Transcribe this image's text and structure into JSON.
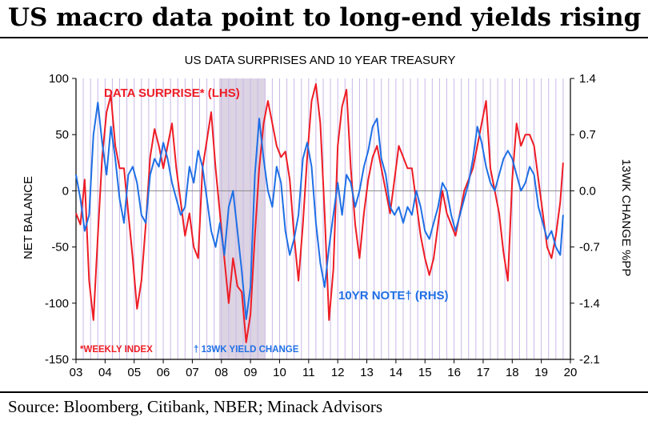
{
  "header": {
    "title": "US macro data point to long-end yields rising"
  },
  "footer": {
    "source": "Source: Bloomberg, Citibank, NBER; Minack Advisors"
  },
  "colors": {
    "data_surprise": "#ee1c25",
    "yield_change": "#1f6fe5",
    "grid": "#c9b8e8",
    "recession_band": "#dcd3e3"
  },
  "chart_data": {
    "type": "line",
    "title": "US DATA SURPRISES AND 10 YEAR TREASURY",
    "ylabel": "NET BALANCE",
    "ylabel_right": "13WK CHANGE %PP",
    "xlim": [
      2003,
      2020
    ],
    "ylim": [
      -150,
      100
    ],
    "ylim_right": [
      -2.1,
      1.4
    ],
    "x_ticks": [
      2003,
      2004,
      2005,
      2006,
      2007,
      2008,
      2009,
      2010,
      2011,
      2012,
      2013,
      2014,
      2015,
      2016,
      2017,
      2018,
      2019,
      2020
    ],
    "x_tick_labels": [
      "03",
      "04",
      "05",
      "06",
      "07",
      "08",
      "09",
      "10",
      "11",
      "12",
      "13",
      "14",
      "15",
      "16",
      "17",
      "18",
      "19",
      "20"
    ],
    "y_ticks": [
      -150,
      -100,
      -50,
      0,
      50,
      100
    ],
    "y_tick_labels": [
      "-150",
      "-100",
      "-50",
      "0",
      "50",
      "100"
    ],
    "y_right_ticks": [
      -2.1,
      -1.4,
      -0.7,
      0.0,
      0.7,
      1.4
    ],
    "y_right_tick_labels": [
      "-2.1",
      "-1.4",
      "-0.7",
      "0.0",
      "0.7",
      "1.4"
    ],
    "grid": true,
    "shaded_period": [
      2007.92,
      2009.5
    ],
    "annotations": {
      "series_red": "DATA SURPRISE* (LHS)",
      "series_blue": "10YR NOTE† (RHS)",
      "foot_red": "*WEEKLY INDEX",
      "foot_blue": "† 13WK YIELD CHANGE"
    },
    "series": [
      {
        "axis": "left",
        "x": [
          2003.0,
          2003.15,
          2003.3,
          2003.45,
          2003.6,
          2003.75,
          2003.9,
          2004.05,
          2004.2,
          2004.35,
          2004.5,
          2004.65,
          2004.8,
          2004.95,
          2005.1,
          2005.25,
          2005.4,
          2005.55,
          2005.7,
          2005.85,
          2006.0,
          2006.15,
          2006.3,
          2006.45,
          2006.6,
          2006.75,
          2006.9,
          2007.05,
          2007.2,
          2007.35,
          2007.5,
          2007.65,
          2007.8,
          2007.95,
          2008.1,
          2008.25,
          2008.4,
          2008.55,
          2008.7,
          2008.85,
          2009.0,
          2009.15,
          2009.3,
          2009.45,
          2009.6,
          2009.75,
          2009.9,
          2010.05,
          2010.2,
          2010.35,
          2010.5,
          2010.65,
          2010.8,
          2010.95,
          2011.1,
          2011.25,
          2011.4,
          2011.55,
          2011.7,
          2011.85,
          2012.0,
          2012.15,
          2012.3,
          2012.45,
          2012.6,
          2012.75,
          2012.9,
          2013.05,
          2013.2,
          2013.35,
          2013.5,
          2013.65,
          2013.8,
          2013.95,
          2014.1,
          2014.25,
          2014.4,
          2014.55,
          2014.7,
          2014.85,
          2015.0,
          2015.15,
          2015.3,
          2015.45,
          2015.6,
          2015.75,
          2015.9,
          2016.05,
          2016.2,
          2016.35,
          2016.5,
          2016.65,
          2016.8,
          2016.95,
          2017.1,
          2017.25,
          2017.4,
          2017.55,
          2017.7,
          2017.85,
          2018.0,
          2018.15,
          2018.3,
          2018.45,
          2018.6,
          2018.75,
          2018.9,
          2019.05,
          2019.2,
          2019.35,
          2019.5,
          2019.65,
          2019.75
        ],
        "values": [
          -20,
          -30,
          10,
          -80,
          -115,
          -40,
          30,
          70,
          85,
          40,
          20,
          20,
          -20,
          -60,
          -105,
          -80,
          -30,
          30,
          55,
          40,
          20,
          40,
          60,
          20,
          -10,
          -40,
          -20,
          -50,
          -60,
          20,
          45,
          70,
          20,
          -20,
          -60,
          -100,
          -60,
          -85,
          -90,
          -135,
          -110,
          -40,
          20,
          60,
          80,
          60,
          40,
          30,
          35,
          10,
          -40,
          -80,
          -30,
          30,
          80,
          95,
          60,
          -20,
          -115,
          -70,
          40,
          75,
          90,
          20,
          -30,
          -60,
          -20,
          10,
          30,
          40,
          20,
          0,
          -20,
          10,
          40,
          30,
          20,
          20,
          -10,
          -40,
          -60,
          -75,
          -60,
          -30,
          0,
          -20,
          -30,
          -40,
          -20,
          0,
          10,
          20,
          40,
          60,
          80,
          20,
          0,
          -20,
          -55,
          -80,
          10,
          60,
          40,
          50,
          50,
          40,
          10,
          -20,
          -50,
          -60,
          -40,
          -10,
          25
        ]
      },
      {
        "axis": "right",
        "x": [
          2003.0,
          2003.15,
          2003.3,
          2003.45,
          2003.6,
          2003.75,
          2003.9,
          2004.05,
          2004.2,
          2004.35,
          2004.5,
          2004.65,
          2004.8,
          2004.95,
          2005.1,
          2005.25,
          2005.4,
          2005.55,
          2005.7,
          2005.85,
          2006.0,
          2006.15,
          2006.3,
          2006.45,
          2006.6,
          2006.75,
          2006.9,
          2007.05,
          2007.2,
          2007.35,
          2007.5,
          2007.65,
          2007.8,
          2007.95,
          2008.1,
          2008.25,
          2008.4,
          2008.55,
          2008.7,
          2008.85,
          2009.0,
          2009.15,
          2009.3,
          2009.45,
          2009.6,
          2009.75,
          2009.9,
          2010.05,
          2010.2,
          2010.35,
          2010.5,
          2010.65,
          2010.8,
          2010.95,
          2011.1,
          2011.25,
          2011.4,
          2011.55,
          2011.7,
          2011.85,
          2012.0,
          2012.15,
          2012.3,
          2012.45,
          2012.6,
          2012.75,
          2012.9,
          2013.05,
          2013.2,
          2013.35,
          2013.5,
          2013.65,
          2013.8,
          2013.95,
          2014.1,
          2014.25,
          2014.4,
          2014.55,
          2014.7,
          2014.85,
          2015.0,
          2015.15,
          2015.3,
          2015.45,
          2015.6,
          2015.75,
          2015.9,
          2016.05,
          2016.2,
          2016.35,
          2016.5,
          2016.65,
          2016.8,
          2016.95,
          2017.1,
          2017.25,
          2017.4,
          2017.55,
          2017.7,
          2017.85,
          2018.0,
          2018.15,
          2018.3,
          2018.45,
          2018.6,
          2018.75,
          2018.9,
          2019.05,
          2019.2,
          2019.35,
          2019.5,
          2019.65,
          2019.75
        ],
        "values": [
          0.2,
          -0.1,
          -0.5,
          -0.3,
          0.7,
          1.1,
          0.6,
          0.2,
          0.8,
          0.4,
          -0.1,
          -0.4,
          0.2,
          0.3,
          0.1,
          -0.3,
          -0.4,
          0.2,
          0.4,
          0.3,
          0.6,
          0.4,
          0.1,
          -0.1,
          -0.3,
          -0.2,
          0.3,
          0.1,
          0.5,
          0.3,
          -0.1,
          -0.5,
          -0.7,
          -0.4,
          -0.8,
          -0.2,
          0.0,
          -0.5,
          -1.0,
          -1.6,
          -1.2,
          0.2,
          0.9,
          0.4,
          0.0,
          -0.2,
          0.3,
          0.1,
          -0.5,
          -0.8,
          -0.6,
          -0.3,
          0.4,
          0.6,
          0.3,
          -0.4,
          -0.9,
          -1.2,
          -0.7,
          -0.3,
          0.1,
          -0.3,
          0.2,
          0.1,
          -0.2,
          0.0,
          0.3,
          0.5,
          0.8,
          0.9,
          0.4,
          0.2,
          -0.2,
          -0.3,
          -0.2,
          -0.4,
          -0.2,
          -0.3,
          0.0,
          -0.2,
          -0.5,
          -0.6,
          -0.4,
          -0.2,
          0.1,
          0.0,
          -0.3,
          -0.5,
          -0.3,
          -0.1,
          0.1,
          0.4,
          0.8,
          0.6,
          0.3,
          0.1,
          0.0,
          0.2,
          0.4,
          0.5,
          0.4,
          0.2,
          0.0,
          0.1,
          0.3,
          0.2,
          -0.2,
          -0.4,
          -0.6,
          -0.5,
          -0.7,
          -0.8,
          -0.3
        ]
      }
    ]
  }
}
